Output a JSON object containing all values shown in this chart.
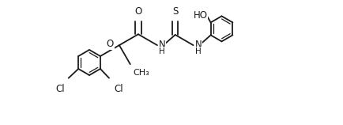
{
  "bg": "#ffffff",
  "lc": "#1a1a1a",
  "lw": 1.3,
  "lw2": 0.9,
  "fs": 8.5,
  "figsize": [
    4.34,
    1.58
  ],
  "dpi": 100,
  "xlim": [
    0,
    10.5
  ],
  "ylim": [
    -2.8,
    2.8
  ]
}
